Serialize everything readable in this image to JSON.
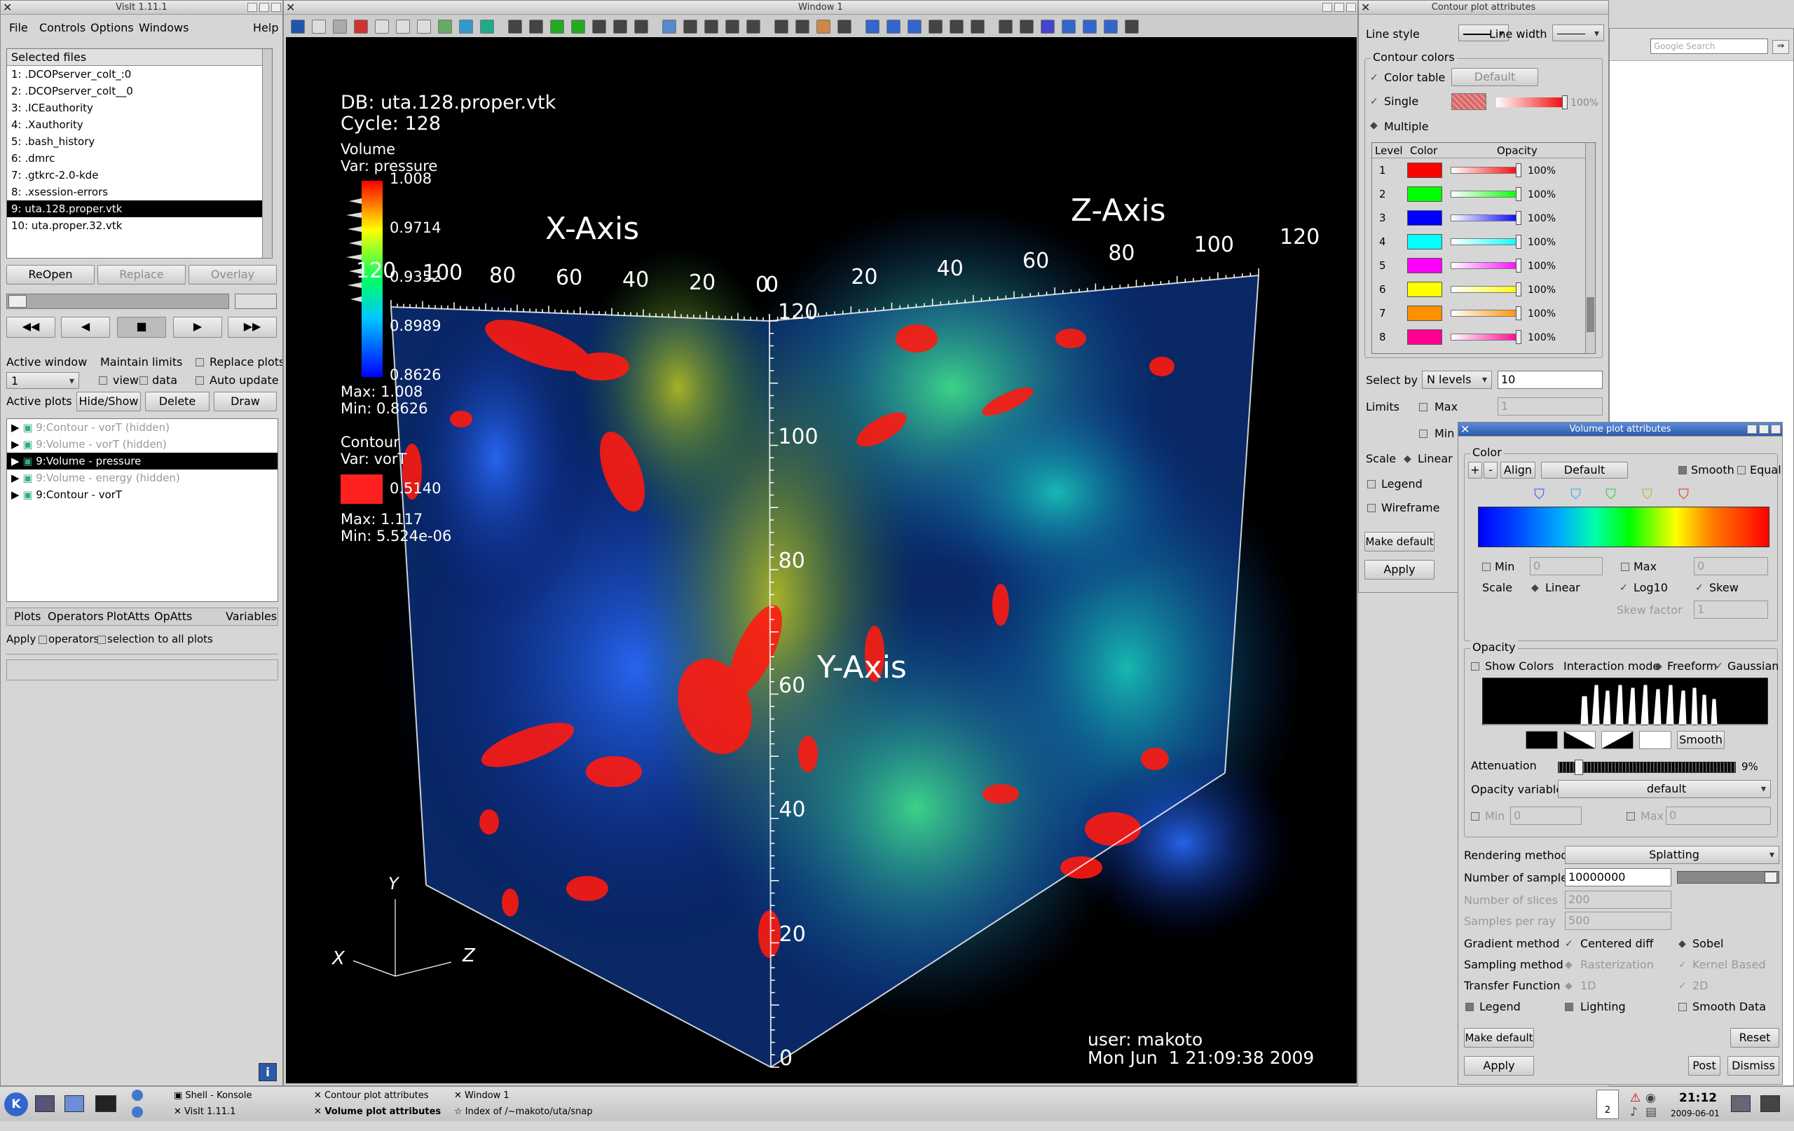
{
  "main_window": {
    "title": "VisIt 1.11.1",
    "menu": [
      "File",
      "Controls",
      "Options",
      "Windows",
      "Help"
    ],
    "selected_files_label": "Selected files",
    "files": [
      "1: .DCOPserver_colt_:0",
      "2: .DCOPserver_colt__0",
      "3: .ICEauthority",
      "4: .Xauthority",
      "5: .bash_history",
      "6: .dmrc",
      "7: .gtkrc-2.0-kde",
      "8: .xsession-errors",
      "9: uta.128.proper.vtk",
      "10: uta.proper.32.vtk"
    ],
    "selected_file_index": 8,
    "reopen": "ReOpen",
    "replace": "Replace",
    "overlay": "Overlay",
    "active_window_label": "Active window",
    "active_window_value": "1",
    "maintain_limits": "Maintain limits",
    "view": "view",
    "data": "data",
    "replace_plots": "Replace plots",
    "auto_update": "Auto update",
    "active_plots_label": "Active plots",
    "hide_show": "Hide/Show",
    "delete": "Delete",
    "draw": "Draw",
    "plots": [
      "9:Contour - vorT (hidden)",
      "9:Volume - vorT (hidden)",
      "9:Volume - pressure",
      "9:Volume - energy (hidden)",
      "9:Contour - vorT"
    ],
    "bottom_menu": [
      "Plots",
      "Operators",
      "PlotAtts",
      "OpAtts",
      "Variables"
    ],
    "apply_label": "Apply",
    "operators_label": "operators",
    "selection_label": "selection to all plots"
  },
  "vis_window": {
    "title": "Window 1",
    "db": "DB: uta.128.proper.vtk",
    "cycle": "Cycle: 128",
    "volume_legend": {
      "title": "Volume",
      "var": "Var: pressure",
      "ticks": [
        "1.008",
        "0.9714",
        "0.9352",
        "0.8989",
        "0.8626"
      ],
      "max": "Max:  1.008",
      "min": "Min:  0.8626"
    },
    "contour_legend": {
      "title": "Contour",
      "var": "Var: vorT",
      "value": "0.5140",
      "max": "Max:  1.117",
      "min": "Min:  5.524e-06",
      "color": "#ff2020"
    },
    "x_axis": "X-Axis",
    "y_axis": "Y-Axis",
    "z_axis": "Z-Axis",
    "x_ticks": [
      "120",
      "100",
      "80",
      "60",
      "40",
      "20",
      "0"
    ],
    "y_ticks": [
      "120",
      "100",
      "80",
      "60",
      "40",
      "20",
      "0"
    ],
    "z_ticks": [
      "0",
      "20",
      "40",
      "60",
      "80",
      "100",
      "120"
    ],
    "triad": {
      "x": "X",
      "y": "Y",
      "z": "Z"
    },
    "user": "user: makoto",
    "date": "Mon Jun  1 21:09:38 2009"
  },
  "contour_window": {
    "title": "Contour plot attributes",
    "line_style": "Line style",
    "line_width": "Line width",
    "contour_colors": "Contour colors",
    "color_table": "Color table",
    "color_table_value": "Default",
    "single": "Single",
    "single_pct": "100%",
    "multiple": "Multiple",
    "col_level": "Level",
    "col_color": "Color",
    "col_opacity": "Opacity",
    "levels": [
      {
        "n": "1",
        "color": "#ff0000",
        "pct": "100%"
      },
      {
        "n": "2",
        "color": "#00ff00",
        "pct": "100%"
      },
      {
        "n": "3",
        "color": "#0000ff",
        "pct": "100%"
      },
      {
        "n": "4",
        "color": "#00ffff",
        "pct": "100%"
      },
      {
        "n": "5",
        "color": "#ff00ff",
        "pct": "100%"
      },
      {
        "n": "6",
        "color": "#ffff00",
        "pct": "100%"
      },
      {
        "n": "7",
        "color": "#ff9000",
        "pct": "100%"
      },
      {
        "n": "8",
        "color": "#ff0090",
        "pct": "100%"
      }
    ],
    "select_by": "Select by",
    "select_by_value": "N levels",
    "select_by_num": "10",
    "limits": "Limits",
    "max": "Max",
    "max_value": "1",
    "min": "Min",
    "scale": "Scale",
    "linear": "Linear",
    "legend": "Legend",
    "wireframe": "Wireframe",
    "make_default": "Make default",
    "apply": "Apply"
  },
  "volume_window": {
    "title": "Volume plot attributes",
    "color": "Color",
    "plus": "+",
    "minus": "-",
    "align": "Align",
    "default": "Default",
    "smooth": "Smooth",
    "equal": "Equal",
    "min": "Min",
    "min_value": "0",
    "max": "Max",
    "max_value": "0",
    "scale": "Scale",
    "linear": "Linear",
    "log10": "Log10",
    "skew": "Skew",
    "skew_factor": "Skew factor",
    "skew_value": "1",
    "opacity": "Opacity",
    "show_colors": "Show Colors",
    "interaction_mode": "Interaction mode",
    "freeform": "Freeform",
    "gaussian": "Gaussian",
    "smooth_btn": "Smooth",
    "attenuation": "Attenuation",
    "attenuation_pct": "9%",
    "attenuation_level": 0.09,
    "opacity_variable": "Opacity variable",
    "opacity_variable_value": "default",
    "rendering_method": "Rendering method",
    "rendering_value": "Splatting",
    "num_samples": "Number of samples",
    "num_samples_value": "10000000",
    "num_slices": "Number of slices",
    "num_slices_value": "200",
    "samples_per_ray": "Samples per ray",
    "samples_per_ray_value": "500",
    "gradient_method": "Gradient method",
    "centered_diff": "Centered diff",
    "sobel": "Sobel",
    "sampling_method": "Sampling method",
    "rasterization": "Rasterization",
    "kernel_based": "Kernel Based",
    "transfer_function": "Transfer Function",
    "tf_1d": "1D",
    "tf_2d": "2D",
    "legend": "Legend",
    "lighting": "Lighting",
    "smooth_data": "Smooth Data",
    "make_default": "Make default",
    "reset": "Reset",
    "apply": "Apply",
    "post": "Post",
    "dismiss": "Dismiss"
  },
  "browser": {
    "search_placeholder": "Google Search"
  },
  "taskbar": {
    "tasks": [
      "Shell - Konsole",
      "VisIt 1.11.1",
      "Contour plot attributes",
      "Volume plot attributes",
      "Window 1",
      "Index of /~makoto/uta/snap"
    ],
    "desktop_num": "2",
    "time": "21:12",
    "date": "2009-06-01"
  }
}
